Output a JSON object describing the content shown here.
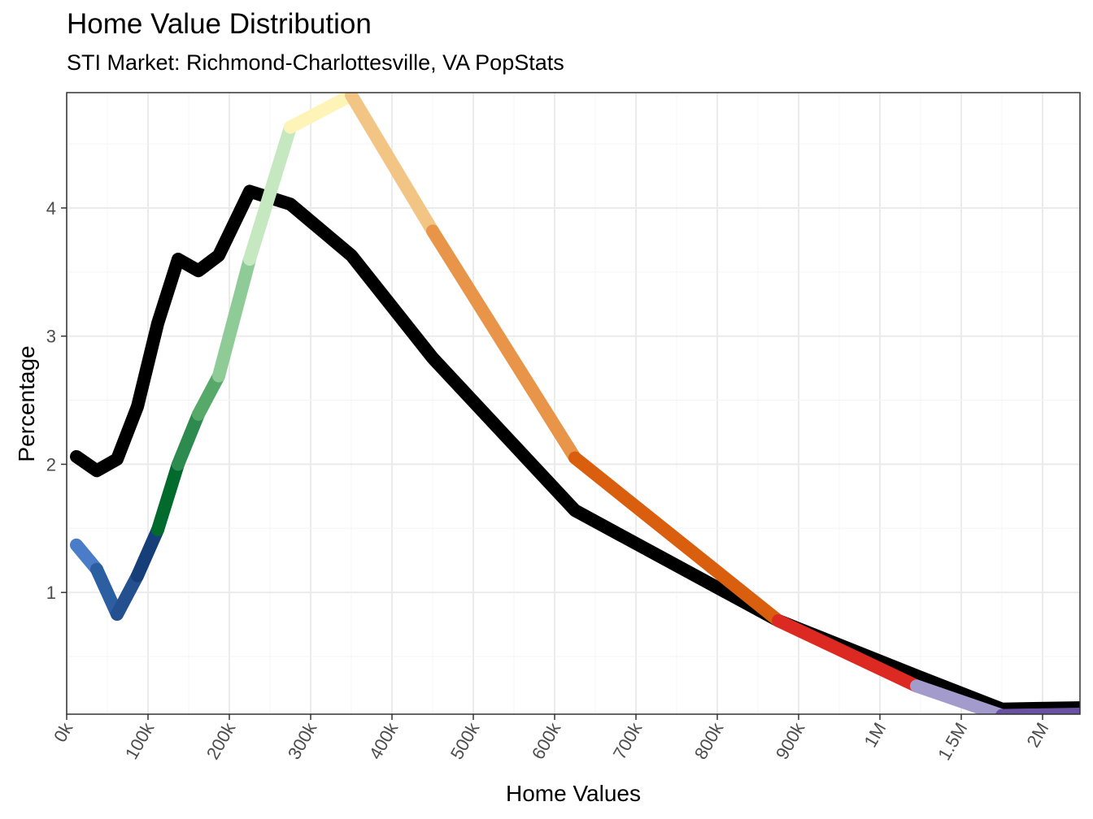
{
  "chart_data": {
    "type": "line",
    "title": "Home Value Distribution",
    "subtitle": "STI Market: Richmond-Charlottesville, VA PopStats",
    "xlabel": "Home Values",
    "ylabel": "Percentage",
    "x_tick_labels": [
      "0k",
      "100k",
      "200k",
      "300k",
      "400k",
      "500k",
      "600k",
      "700k",
      "800k",
      "900k",
      "1M",
      "1.5M",
      "2M"
    ],
    "y_ticks": [
      1,
      2,
      3,
      4
    ],
    "ylim": [
      0.05,
      4.9
    ],
    "grid": true,
    "x_note": "x positions given in axis index units: 0 = 0k, 1 = 100k, ..., 10 = 1M, 11 = 1.5M, 12 = 2M",
    "series": [
      {
        "name": "",
        "color": "#000000",
        "x": [
          0.12,
          0.37,
          0.62,
          0.87,
          1.12,
          1.37,
          1.62,
          1.87,
          2.25,
          2.75,
          3.5,
          4.5,
          6.25,
          8.75,
          10.45,
          11.5,
          12.45
        ],
        "y": [
          2.06,
          1.95,
          2.04,
          2.45,
          3.1,
          3.6,
          3.51,
          3.63,
          4.13,
          4.03,
          3.63,
          2.83,
          1.64,
          0.78,
          0.35,
          0.09,
          0.1
        ]
      },
      {
        "name": "",
        "colored_segments": true,
        "x": [
          0.12,
          0.37,
          0.62,
          0.87,
          1.12,
          1.37,
          1.62,
          1.87,
          2.25,
          2.75,
          3.5,
          4.5,
          6.25,
          8.75,
          10.45,
          11.5,
          12.45
        ],
        "y": [
          1.37,
          1.18,
          0.83,
          1.13,
          1.49,
          2.0,
          2.39,
          2.69,
          3.6,
          4.63,
          4.88,
          3.82,
          2.05,
          0.78,
          0.27,
          0.04,
          0.05
        ],
        "segment_colors": [
          "#4a7cc7",
          "#2c5fa1",
          "#24508f",
          "#163f7a",
          "#006b2d",
          "#2e8b50",
          "#57a96a",
          "#8fcb96",
          "#c6e8c0",
          "#fff4b8",
          "#f2c584",
          "#e89549",
          "#d95f0e",
          "#dc2a23",
          "#a29bcc",
          "#6a51a3"
        ]
      }
    ]
  }
}
